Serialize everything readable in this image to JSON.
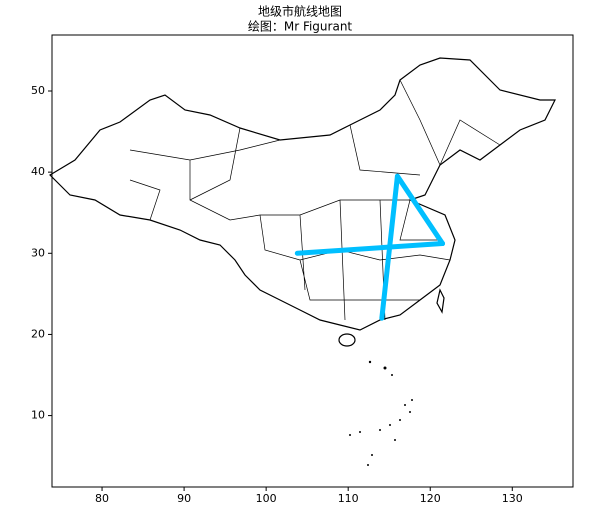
{
  "chart_data": {
    "type": "map",
    "title": "地级市航线地图",
    "subtitle": "绘图：Mr Figurant",
    "xlim": [
      73.9,
      137.4
    ],
    "ylim": [
      1.2,
      56.9
    ],
    "xticks": [
      80,
      90,
      100,
      110,
      120,
      130
    ],
    "yticks": [
      10,
      20,
      30,
      40,
      50
    ],
    "color": "#00bfff",
    "routes": [
      {
        "x": [
          103.8,
          121.5
        ],
        "y": [
          30.0,
          31.2
        ]
      },
      {
        "x": [
          116.0,
          121.5
        ],
        "y": [
          39.5,
          31.2
        ]
      },
      {
        "x": [
          116.0,
          114.1
        ],
        "y": [
          39.5,
          22.0
        ]
      }
    ]
  }
}
